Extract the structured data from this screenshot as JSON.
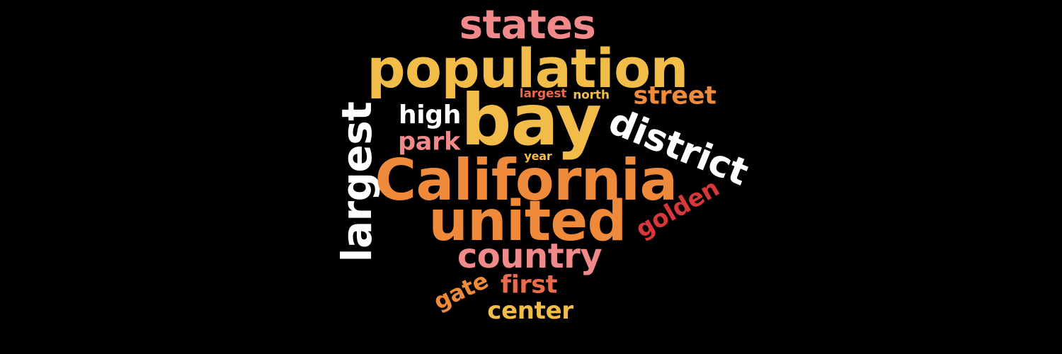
{
  "colors": {
    "background": "#000000",
    "pink": "#F08A8A",
    "yellow": "#F2BC48",
    "orange": "#EE8A3A",
    "coral": "#EA6A4C",
    "red": "#D6373A",
    "white": "#FFFFFF"
  },
  "words": [
    {
      "key": "states",
      "text": "states",
      "color": "#F08A8A"
    },
    {
      "key": "population",
      "text": "population",
      "color": "#F2BC48"
    },
    {
      "key": "largest_sm",
      "text": "largest",
      "color": "#EA6A4C"
    },
    {
      "key": "north",
      "text": "north",
      "color": "#F2BC48"
    },
    {
      "key": "street",
      "text": "street",
      "color": "#EE8A3A"
    },
    {
      "key": "high",
      "text": "high",
      "color": "#FFFFFF"
    },
    {
      "key": "bay",
      "text": "bay",
      "color": "#F2BC48"
    },
    {
      "key": "district",
      "text": "district",
      "color": "#FFFFFF"
    },
    {
      "key": "largest_big",
      "text": "largest",
      "color": "#FFFFFF"
    },
    {
      "key": "park",
      "text": "park",
      "color": "#F08A8A"
    },
    {
      "key": "year",
      "text": "year",
      "color": "#F2BC48"
    },
    {
      "key": "california",
      "text": "California",
      "color": "#EE8A3A"
    },
    {
      "key": "golden",
      "text": "golden",
      "color": "#D6373A"
    },
    {
      "key": "united",
      "text": "united",
      "color": "#EE8A3A"
    },
    {
      "key": "country",
      "text": "country",
      "color": "#F08A8A"
    },
    {
      "key": "first",
      "text": "first",
      "color": "#EA6A4C"
    },
    {
      "key": "gate",
      "text": "gate",
      "color": "#EE8A3A"
    },
    {
      "key": "center",
      "text": "center",
      "color": "#F2BC48"
    }
  ]
}
